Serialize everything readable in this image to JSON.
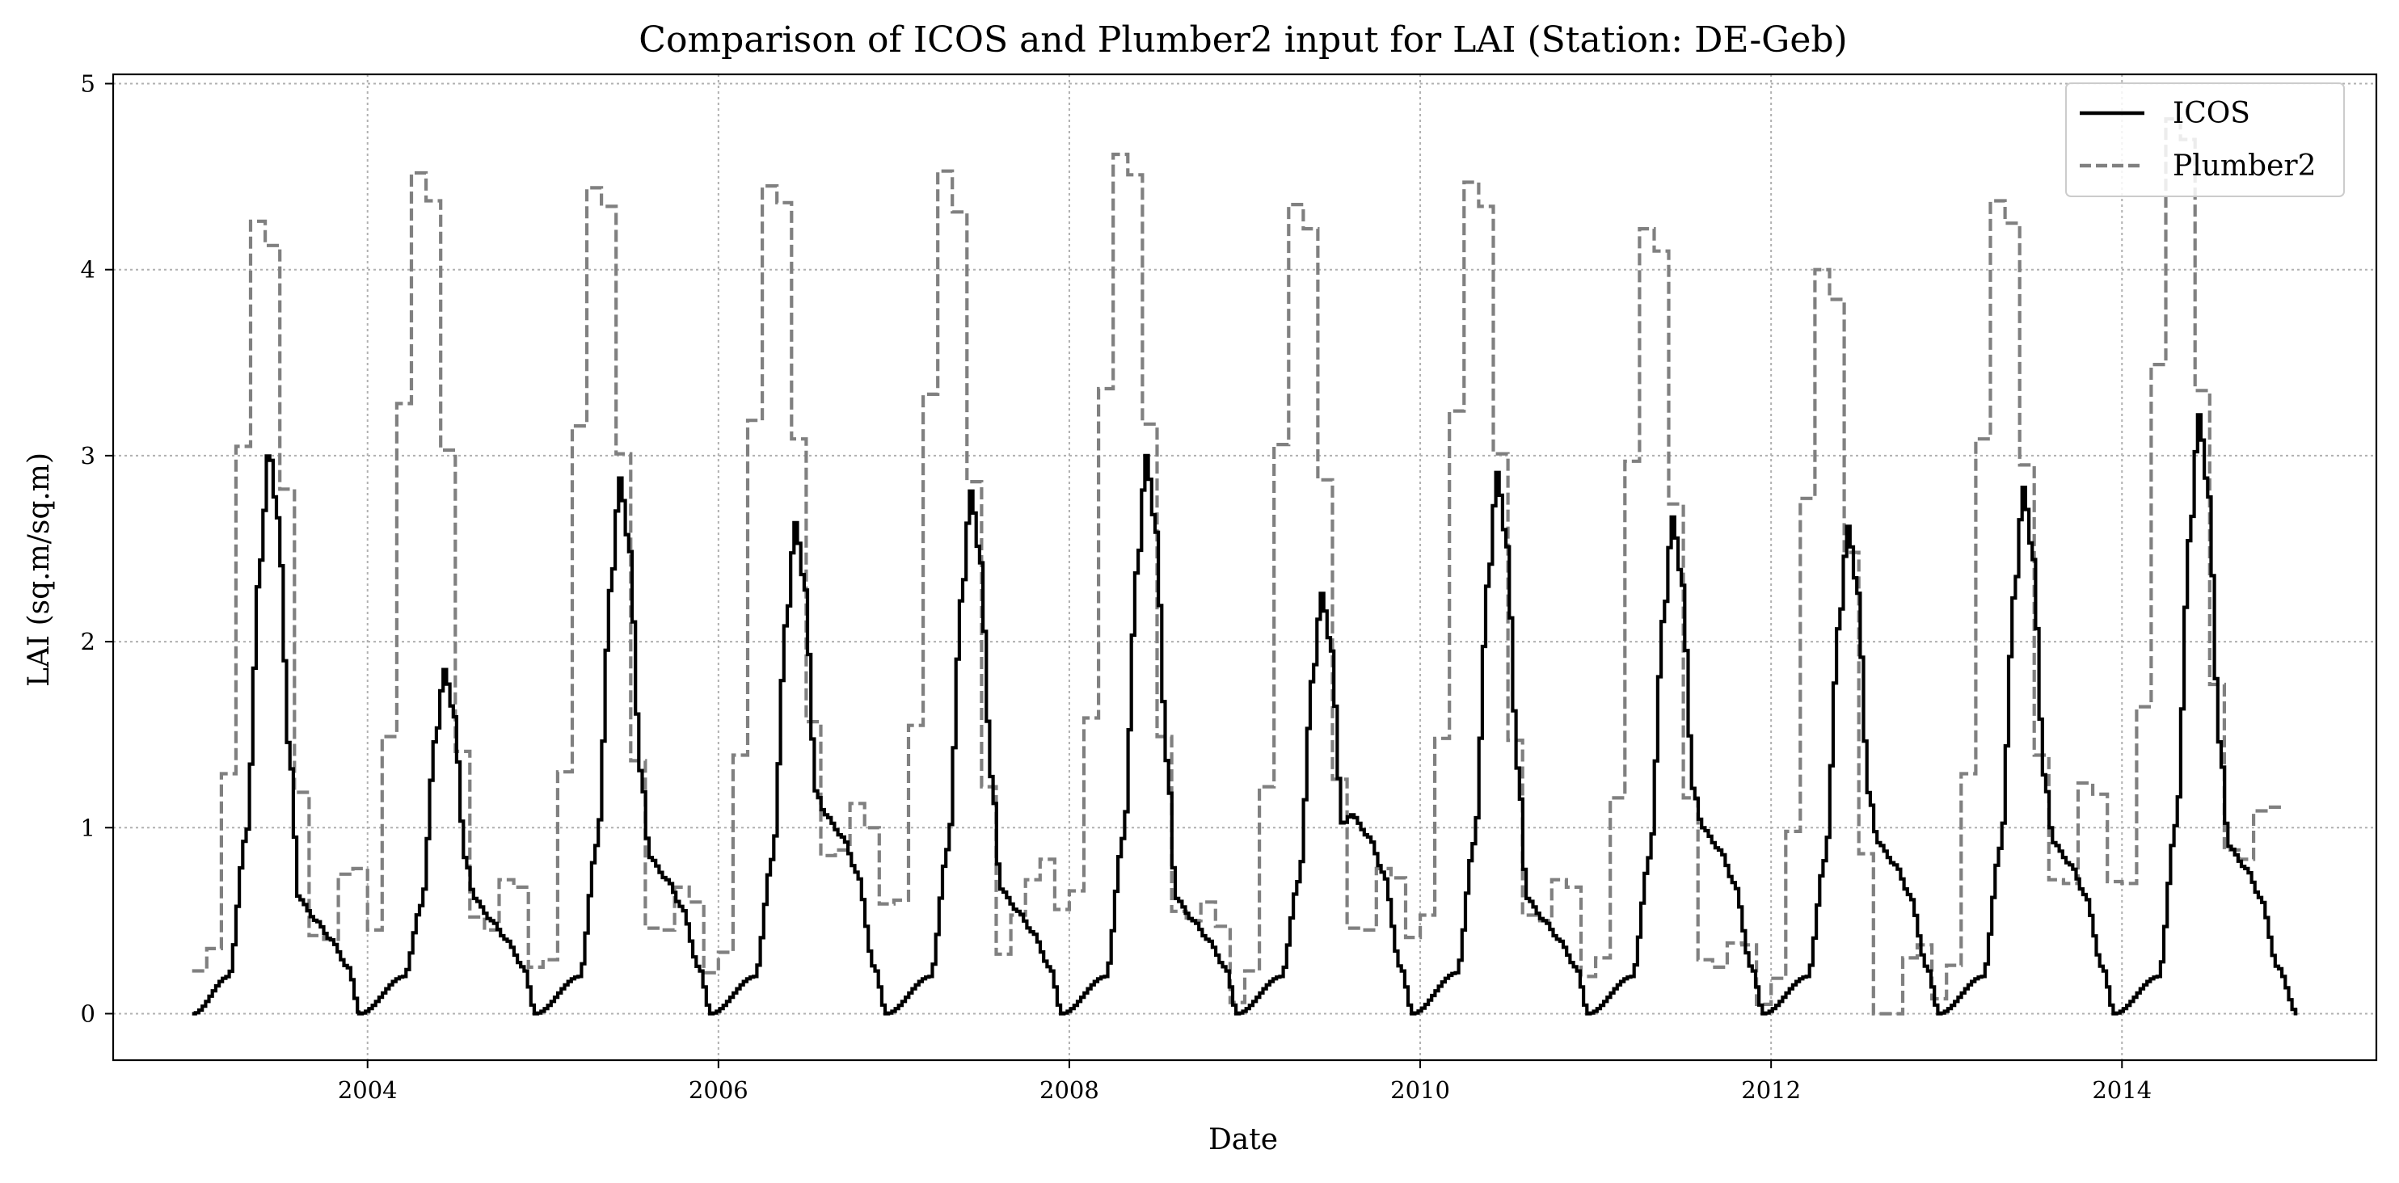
{
  "chart_data": {
    "type": "line",
    "title": "Comparison of ICOS and Plumber2 input for LAI (Station: DE-Geb)",
    "xlabel": "Date",
    "ylabel": "LAI (sq.m/sq.m)",
    "xlim": [
      2002.55,
      2015.45
    ],
    "ylim": [
      -0.25,
      5.05
    ],
    "x_ticks": [
      2004,
      2006,
      2008,
      2010,
      2012,
      2014
    ],
    "y_ticks": [
      0,
      1,
      2,
      3,
      4,
      5
    ],
    "grid": true,
    "legend_position": "top-right",
    "series": [
      {
        "name": "ICOS",
        "color": "#000000",
        "style": "solid",
        "seasons": [
          {
            "year": 2003,
            "start_val": 0.0,
            "peak": 3.03,
            "plateau": 0.5,
            "end_val": 0.0,
            "min_time": 2003.0
          },
          {
            "year": 2004,
            "start_val": 0.0,
            "peak": 1.85,
            "plateau": 0.5,
            "end_val": 0.0,
            "min_time": 2003.95
          },
          {
            "year": 2005,
            "start_val": 0.0,
            "peak": 2.88,
            "plateau": 0.72,
            "end_val": 0.0,
            "min_time": 2004.95
          },
          {
            "year": 2006,
            "start_val": 0.0,
            "peak": 2.64,
            "plateau": 0.95,
            "end_val": 0.0,
            "min_time": 2005.95
          },
          {
            "year": 2007,
            "start_val": 0.0,
            "peak": 2.81,
            "plateau": 0.55,
            "end_val": 0.0,
            "min_time": 2006.95
          },
          {
            "year": 2008,
            "start_val": 0.0,
            "peak": 3.0,
            "plateau": 0.5,
            "end_val": 0.0,
            "min_time": 2007.95
          },
          {
            "year": 2009,
            "start_val": 0.0,
            "peak": 2.26,
            "plateau": 0.95,
            "end_val": 0.0,
            "min_time": 2008.95
          },
          {
            "year": 2010,
            "start_val": 0.2,
            "peak": 2.91,
            "plateau": 0.5,
            "end_val": 0.0,
            "min_time": 2009.95
          },
          {
            "year": 2011,
            "start_val": 0.0,
            "peak": 2.67,
            "plateau": 0.88,
            "end_val": 0.0,
            "min_time": 2010.95
          },
          {
            "year": 2012,
            "start_val": 0.0,
            "peak": 2.62,
            "plateau": 0.8,
            "end_val": 0.0,
            "min_time": 2011.95
          },
          {
            "year": 2013,
            "start_val": 0.0,
            "peak": 2.83,
            "plateau": 0.8,
            "end_val": 0.0,
            "min_time": 2012.95
          },
          {
            "year": 2014,
            "start_val": 0.0,
            "peak": 3.22,
            "plateau": 0.78,
            "end_val": 0.0,
            "min_time": 2013.95
          }
        ]
      },
      {
        "name": "Plumber2",
        "color": "#808080",
        "style": "dashed",
        "monthly": [
          0.23,
          0.35,
          1.29,
          3.05,
          4.26,
          4.13,
          2.82,
          1.19,
          0.42,
          0.4,
          0.75,
          0.78,
          0.45,
          1.49,
          3.28,
          4.52,
          4.37,
          3.03,
          1.41,
          0.52,
          0.45,
          0.72,
          0.68,
          0.25,
          0.29,
          1.3,
          3.16,
          4.44,
          4.34,
          3.01,
          1.36,
          0.46,
          0.45,
          0.68,
          0.6,
          0.22,
          0.33,
          1.39,
          3.19,
          4.45,
          4.36,
          3.09,
          1.57,
          0.85,
          0.88,
          1.13,
          1.0,
          0.59,
          0.61,
          1.55,
          3.33,
          4.53,
          4.31,
          2.86,
          1.22,
          0.32,
          0.53,
          0.72,
          0.83,
          0.56,
          0.66,
          1.59,
          3.36,
          4.62,
          4.51,
          3.17,
          1.49,
          0.55,
          0.5,
          0.6,
          0.47,
          0.06,
          0.23,
          1.22,
          3.06,
          4.35,
          4.22,
          2.87,
          1.26,
          0.46,
          0.45,
          0.78,
          0.73,
          0.41,
          0.53,
          1.48,
          3.24,
          4.47,
          4.34,
          3.01,
          1.47,
          0.53,
          0.5,
          0.72,
          0.68,
          0.2,
          0.3,
          1.16,
          2.97,
          4.22,
          4.1,
          2.74,
          1.16,
          0.29,
          0.25,
          0.38,
          0.37,
          0.05,
          0.19,
          0.98,
          2.77,
          4.0,
          3.84,
          2.48,
          0.86,
          0.0,
          0.0,
          0.3,
          0.37,
          0.08,
          0.26,
          1.29,
          3.09,
          4.37,
          4.25,
          2.95,
          1.39,
          0.72,
          0.7,
          1.24,
          1.18,
          0.71,
          0.7,
          1.65,
          3.49,
          4.81,
          4.7,
          3.35,
          1.77,
          0.88,
          0.83,
          1.09,
          1.11
        ]
      }
    ]
  }
}
